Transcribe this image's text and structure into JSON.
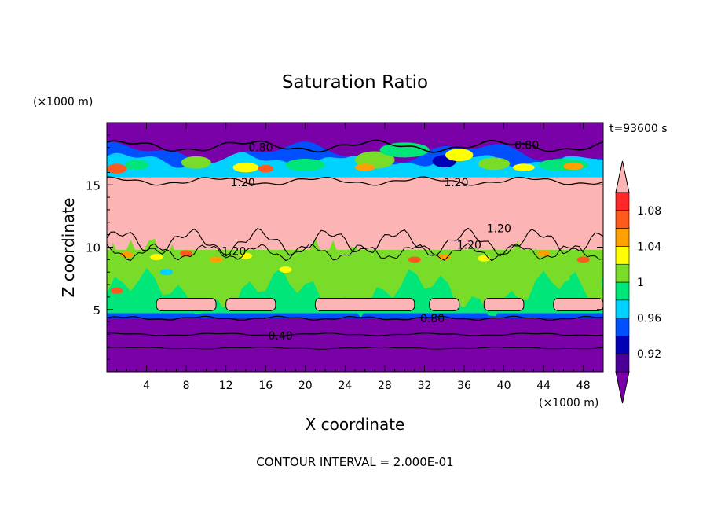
{
  "chart_data": {
    "type": "heatmap",
    "title": "Saturation Ratio",
    "xlabel": "X coordinate",
    "ylabel": "Z coordinate",
    "x_unit": "(×1000 m)",
    "y_unit": "(×1000 m)",
    "time_label": "t=93600 s",
    "footer": "CONTOUR INTERVAL = 2.000E-01",
    "xlim": [
      0,
      50
    ],
    "ylim": [
      0,
      20
    ],
    "xticks": [
      4,
      8,
      12,
      16,
      20,
      24,
      28,
      32,
      36,
      40,
      44,
      48
    ],
    "yticks": [
      5,
      10,
      15
    ],
    "colorbar": {
      "tick_labels": [
        "0.92",
        "0.96",
        "1",
        "1.04",
        "1.08"
      ],
      "tick_values": [
        0.92,
        0.96,
        1.0,
        1.04,
        1.08
      ],
      "levels": [
        {
          "range": "<0.90",
          "color": "#7a00a8"
        },
        {
          "range": "0.90-0.92",
          "color": "#4a0096"
        },
        {
          "range": "0.92-0.94",
          "color": "#0000b4"
        },
        {
          "range": "0.94-0.96",
          "color": "#0050ff"
        },
        {
          "range": "0.96-0.98",
          "color": "#00d2ff"
        },
        {
          "range": "0.98-1.00",
          "color": "#00e678"
        },
        {
          "range": "1.00-1.02",
          "color": "#78dc28"
        },
        {
          "range": "1.02-1.04",
          "color": "#ffff00"
        },
        {
          "range": "1.04-1.06",
          "color": "#ffa000"
        },
        {
          "range": "1.06-1.08",
          "color": "#ff5a1e"
        },
        {
          "range": "1.08-1.10",
          "color": "#ff2828"
        },
        {
          "range": ">1.10",
          "color": "#fcb4b4"
        }
      ]
    },
    "contour_labels": [
      {
        "text": "0.80",
        "x": 15.5,
        "z": 18.0
      },
      {
        "text": "0.80",
        "x": 42.3,
        "z": 18.2
      },
      {
        "text": "1.20",
        "x": 13.7,
        "z": 15.2
      },
      {
        "text": "1.20",
        "x": 35.2,
        "z": 15.2
      },
      {
        "text": "1.20",
        "x": 39.5,
        "z": 11.5
      },
      {
        "text": "1.20",
        "x": 36.5,
        "z": 10.2
      },
      {
        "text": "1.20",
        "x": 12.8,
        "z": 9.7
      },
      {
        "text": "0.80",
        "x": 32.8,
        "z": 4.3
      },
      {
        "text": "0.40",
        "x": 17.5,
        "z": 2.9
      }
    ],
    "bands_z": [
      {
        "from": 0,
        "to": 4.3,
        "level": "<0.90"
      },
      {
        "from": 4.3,
        "to": 4.7,
        "level": "0.94-0.96"
      },
      {
        "from": 4.7,
        "to": 5.2,
        "level": "0.98-1.00"
      },
      {
        "from": 5.2,
        "to": 7.5,
        "level": "0.98-1.00"
      },
      {
        "from": 7.5,
        "to": 9.8,
        "level": "1.00-1.02"
      },
      {
        "from": 9.8,
        "to": 15.6,
        "level": ">1.10"
      },
      {
        "from": 15.6,
        "to": 17.6,
        "level": "0.96-0.98"
      },
      {
        "from": 17.6,
        "to": 20,
        "level": "<0.90"
      }
    ]
  }
}
